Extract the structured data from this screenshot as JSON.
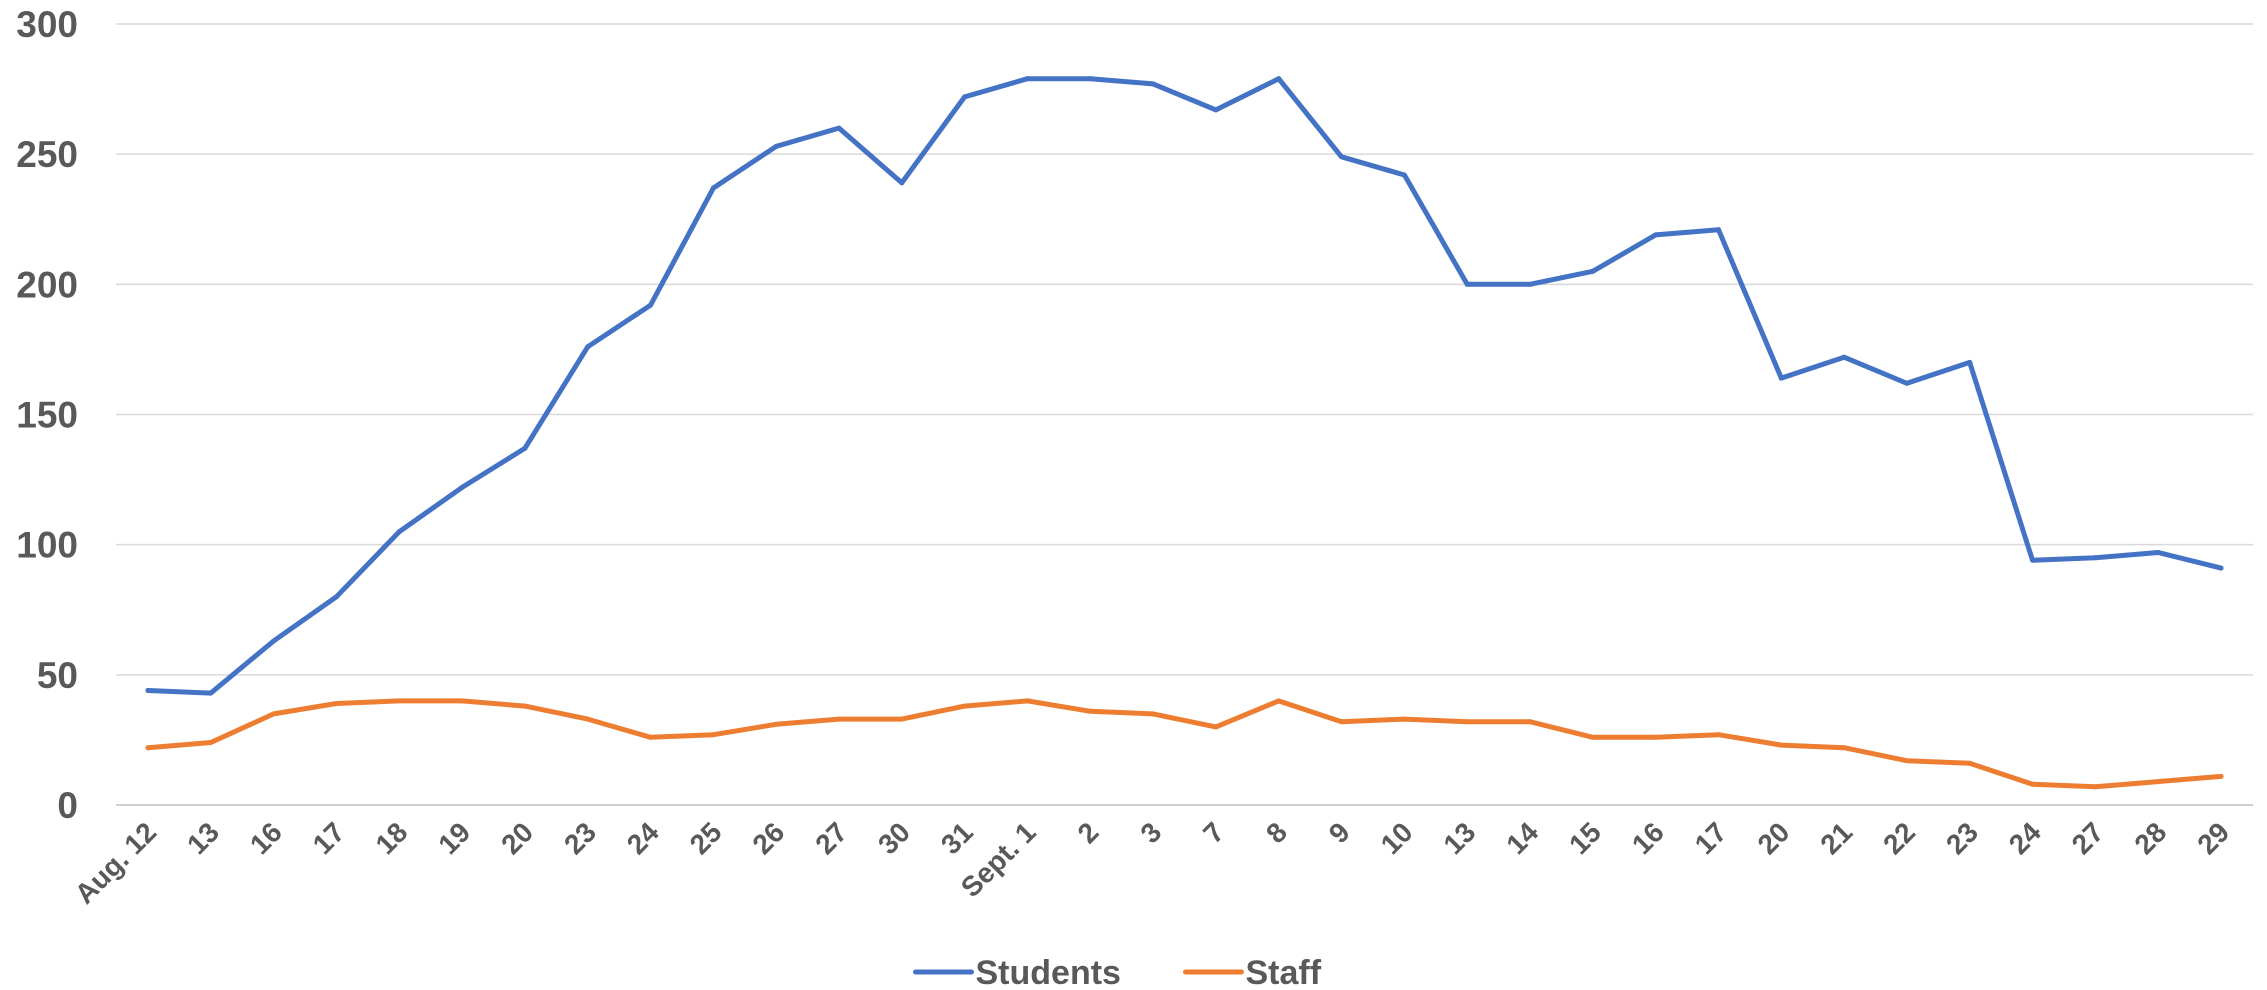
{
  "chart_data": {
    "type": "line",
    "title": "",
    "xlabel": "",
    "ylabel": "",
    "ylim": [
      0,
      300
    ],
    "yticks": [
      0,
      50,
      100,
      150,
      200,
      250,
      300
    ],
    "grid": true,
    "legend_position": "bottom",
    "categories": [
      "Aug. 12",
      "13",
      "16",
      "17",
      "18",
      "19",
      "20",
      "23",
      "24",
      "25",
      "26",
      "27",
      "30",
      "31",
      "Sept. 1",
      "2",
      "3",
      "7",
      "8",
      "9",
      "10",
      "13",
      "14",
      "15",
      "16",
      "17",
      "20",
      "21",
      "22",
      "23",
      "24",
      "27",
      "28",
      "29"
    ],
    "series": [
      {
        "name": "Students",
        "color": "#4472C4",
        "values": [
          44,
          43,
          63,
          80,
          105,
          122,
          137,
          176,
          192,
          237,
          253,
          260,
          239,
          272,
          279,
          279,
          277,
          267,
          279,
          249,
          242,
          200,
          200,
          205,
          219,
          221,
          164,
          172,
          162,
          170,
          94,
          95,
          97,
          91
        ]
      },
      {
        "name": "Staff",
        "color": "#ED7D31",
        "values": [
          22,
          24,
          35,
          39,
          40,
          40,
          38,
          33,
          26,
          27,
          31,
          33,
          33,
          38,
          40,
          36,
          35,
          30,
          40,
          32,
          33,
          32,
          32,
          26,
          26,
          27,
          23,
          22,
          17,
          16,
          8,
          7,
          9,
          11
        ]
      }
    ]
  }
}
